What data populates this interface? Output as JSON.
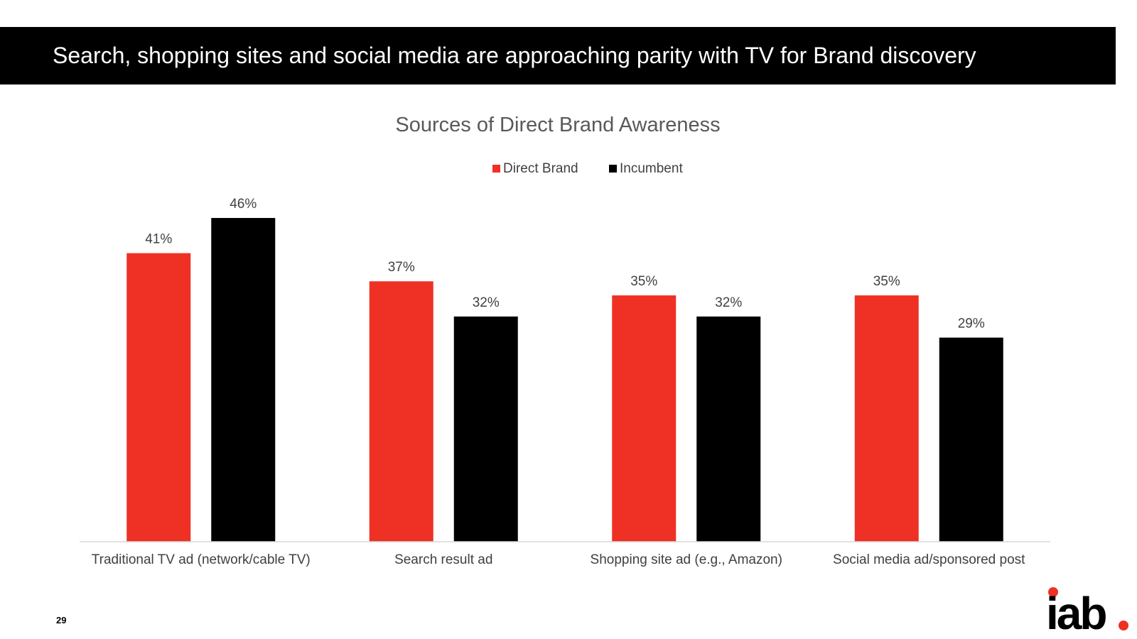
{
  "slide": {
    "headline": "Search, shopping sites and social media are approaching parity with TV for Brand discovery",
    "page_number": "29",
    "logo_text": "iab"
  },
  "colors": {
    "direct_brand": "#ee3124",
    "incumbent": "#000000",
    "title_text": "#595959",
    "axis": "#d9d9d9"
  },
  "chart_data": {
    "type": "bar",
    "title": "Sources of Direct Brand Awareness",
    "categories": [
      "Traditional TV ad (network/cable TV)",
      "Search result ad",
      "Shopping site ad (e.g., Amazon)",
      "Social media ad/sponsored post"
    ],
    "series": [
      {
        "name": "Direct Brand",
        "values": [
          41,
          37,
          35,
          35
        ],
        "labels": [
          "41%",
          "37%",
          "35%",
          "35%"
        ]
      },
      {
        "name": "Incumbent",
        "values": [
          46,
          32,
          32,
          29
        ],
        "labels": [
          "46%",
          "32%",
          "32%",
          "29%"
        ]
      }
    ],
    "ylim": [
      0,
      46
    ],
    "grid": false,
    "legend_position": "top"
  }
}
